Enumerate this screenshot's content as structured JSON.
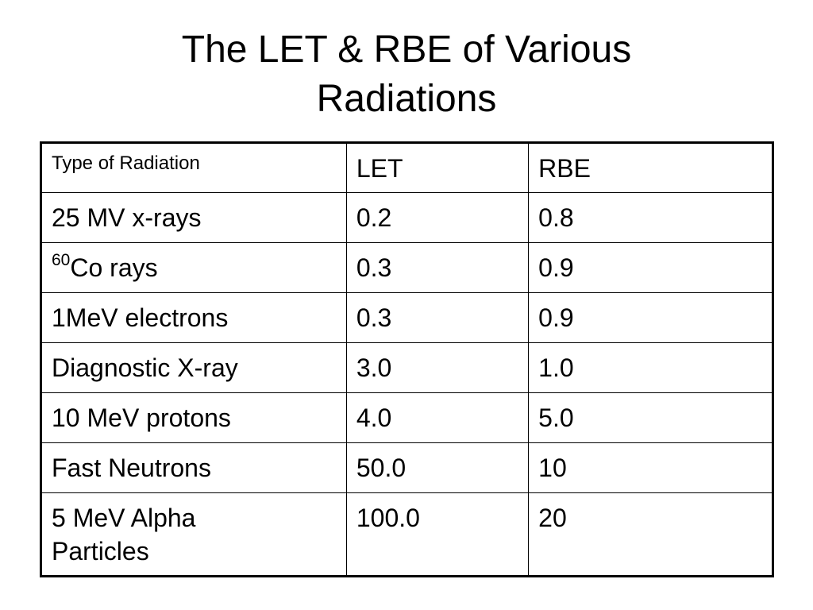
{
  "title": {
    "line1": "The LET & RBE of Various",
    "line2": "Radiations"
  },
  "table": {
    "header": {
      "type": "Type of Radiation",
      "let": "LET",
      "rbe": "RBE"
    },
    "rows": [
      {
        "type": "25 MV x-rays",
        "let": "0.2",
        "rbe": "0.8"
      },
      {
        "type_sup": "60",
        "type": "Co rays",
        "let": "0.3",
        "rbe": "0.9"
      },
      {
        "type": "1MeV electrons",
        "let": "0.3",
        "rbe": "0.9"
      },
      {
        "type": "Diagnostic X-ray",
        "let": "3.0",
        "rbe": "1.0"
      },
      {
        "type": "10 MeV protons",
        "let": "4.0",
        "rbe": "5.0"
      },
      {
        "type": "Fast Neutrons",
        "let": "50.0",
        "rbe": "10"
      },
      {
        "type": "5 MeV Alpha Particles",
        "type_line1": "5 MeV Alpha",
        "type_line2": "Particles",
        "let": "100.0",
        "rbe": "20"
      }
    ]
  }
}
